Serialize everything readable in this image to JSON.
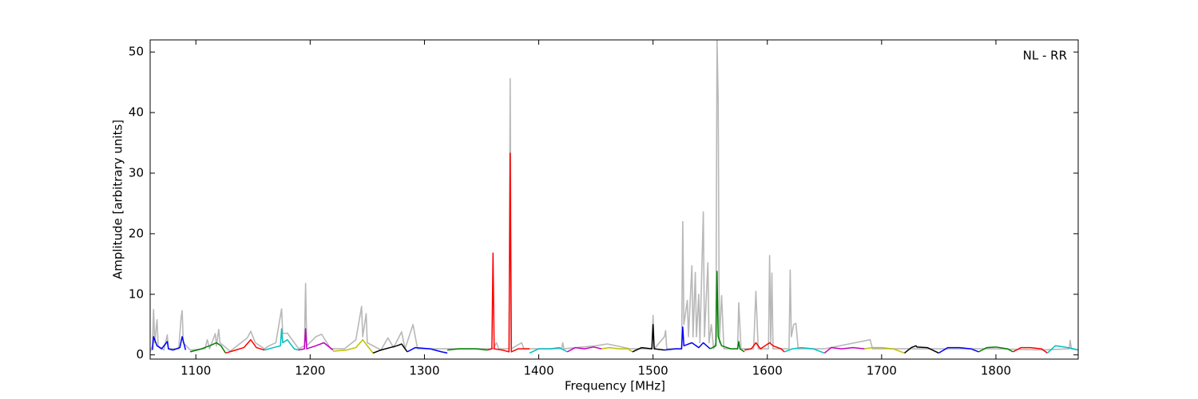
{
  "chart_data": {
    "type": "line",
    "x_label": "Frequency [MHz]",
    "y_label": "Amplitude [arbitrary units]",
    "annotation": "NL - RR",
    "xlim": [
      1060,
      1872
    ],
    "ylim": [
      -0.7,
      52
    ],
    "xticks": [
      1100,
      1200,
      1300,
      1400,
      1500,
      1600,
      1700,
      1800
    ],
    "yticks": [
      0,
      10,
      20,
      30,
      40,
      50
    ],
    "grid": false,
    "series": [
      {
        "color": "#b8b8b8",
        "x": [
          1060,
          1062,
          1063,
          1064,
          1066,
          1067,
          1072,
          1075,
          1076,
          1085,
          1087,
          1088,
          1089,
          1095,
          1108,
          1110,
          1112,
          1117,
          1118,
          1120,
          1121,
          1130,
          1145,
          1148,
          1152,
          1160,
          1164,
          1170,
          1175,
          1176,
          1180,
          1190,
          1195,
          1196,
          1197,
          1205,
          1210,
          1218,
          1230,
          1240,
          1245,
          1246,
          1249,
          1250,
          1262,
          1268,
          1273,
          1280,
          1283,
          1290,
          1294,
          1305,
          1340,
          1360,
          1363,
          1365,
          1374,
          1375,
          1376,
          1385,
          1387,
          1420,
          1421,
          1422,
          1450,
          1460,
          1480,
          1499,
          1500,
          1501,
          1510,
          1511,
          1512,
          1525,
          1526,
          1527,
          1530,
          1531,
          1534,
          1535,
          1537,
          1538,
          1540,
          1541,
          1544,
          1545,
          1548,
          1549,
          1551,
          1553,
          1555,
          1556,
          1557,
          1558,
          1560,
          1562,
          1574,
          1575,
          1577,
          1588,
          1590,
          1592,
          1601,
          1602,
          1603,
          1604,
          1605,
          1619,
          1620,
          1621,
          1623,
          1625,
          1627,
          1650,
          1690,
          1692,
          1750,
          1800,
          1840,
          1864,
          1865,
          1866,
          1872
        ],
        "values": [
          0.5,
          1.5,
          7.5,
          2,
          5.8,
          1.5,
          0.8,
          3.3,
          1,
          1,
          6,
          7.3,
          2,
          0.8,
          1,
          2.5,
          1,
          3.5,
          1.5,
          4.2,
          2,
          0.6,
          2.8,
          3.9,
          2,
          1,
          1.5,
          2,
          7.6,
          3.5,
          3.6,
          1,
          1.5,
          11.8,
          1.5,
          3,
          3.4,
          1,
          1,
          2.5,
          8,
          3,
          6.8,
          2,
          0.8,
          2.8,
          1.2,
          3.8,
          1,
          5,
          1,
          1,
          1,
          1,
          2,
          1,
          1,
          45.6,
          1,
          2,
          1,
          1,
          2,
          1,
          1.5,
          1.8,
          1,
          1,
          6.5,
          1,
          3,
          4,
          1,
          1,
          22,
          5,
          9,
          3,
          14.7,
          3,
          13.6,
          3,
          10,
          2,
          23.6,
          3,
          15.2,
          2,
          5,
          1,
          2,
          52,
          42,
          2,
          9.8,
          1,
          1,
          8.6,
          1,
          1,
          10.5,
          1,
          1,
          16.4,
          2,
          13.5,
          1,
          1,
          14,
          3,
          5,
          5.2,
          1,
          1,
          2.5,
          1,
          1,
          1,
          0.8,
          1,
          2.4,
          1,
          0.8
        ]
      },
      {
        "color": "#0000ff",
        "x": [
          1062,
          1063,
          1066,
          1070,
          1075,
          1076,
          1080,
          1086,
          1088,
          1091
        ],
        "values": [
          0.8,
          3,
          1.5,
          1,
          2.2,
          1,
          0.8,
          1.2,
          3,
          0.8
        ]
      },
      {
        "color": "#008000",
        "x": [
          1095,
          1105,
          1112,
          1118,
          1122,
          1126
        ],
        "values": [
          0.5,
          1,
          1.5,
          2,
          1.5,
          0.3
        ]
      },
      {
        "color": "#ff0000",
        "x": [
          1126,
          1135,
          1142,
          1148,
          1153,
          1160
        ],
        "values": [
          0.3,
          0.8,
          1.2,
          2.5,
          1.2,
          0.8
        ]
      },
      {
        "color": "#00bfbf",
        "x": [
          1160,
          1168,
          1174,
          1175,
          1176,
          1180,
          1186,
          1190
        ],
        "values": [
          0.8,
          1.2,
          1.5,
          4.3,
          2,
          2.5,
          1,
          0.8
        ]
      },
      {
        "color": "#bf00bf",
        "x": [
          1190,
          1195,
          1196,
          1197,
          1205,
          1212,
          1220
        ],
        "values": [
          0.8,
          1,
          4.3,
          1,
          1.5,
          2,
          0.8
        ]
      },
      {
        "color": "#bfbf00",
        "x": [
          1220,
          1232,
          1240,
          1246,
          1250,
          1255
        ],
        "values": [
          0.6,
          0.8,
          1.2,
          2.5,
          1.5,
          0.3
        ]
      },
      {
        "color": "#000000",
        "x": [
          1255,
          1262,
          1270,
          1276,
          1280,
          1285
        ],
        "values": [
          0.3,
          0.8,
          1.2,
          1.5,
          1.8,
          0.5
        ]
      },
      {
        "color": "#0000ff",
        "x": [
          1285,
          1292,
          1305,
          1315,
          1320
        ],
        "values": [
          0.5,
          1.2,
          1,
          0.5,
          0.3
        ]
      },
      {
        "color": "#008000",
        "x": [
          1320,
          1330,
          1345,
          1355
        ],
        "values": [
          0.8,
          1,
          1,
          0.8
        ]
      },
      {
        "color": "#ff0000",
        "x": [
          1355,
          1359,
          1360,
          1361,
          1368,
          1374,
          1375,
          1376,
          1382,
          1392
        ],
        "values": [
          0.8,
          1,
          16.8,
          1,
          0.8,
          0.5,
          33.3,
          0.5,
          1,
          1
        ]
      },
      {
        "color": "#00bfbf",
        "x": [
          1392,
          1400,
          1410,
          1418,
          1425
        ],
        "values": [
          0.3,
          1,
          1,
          1.2,
          0.5
        ]
      },
      {
        "color": "#bf00bf",
        "x": [
          1425,
          1432,
          1440,
          1448,
          1455
        ],
        "values": [
          0.5,
          1.2,
          1,
          1.3,
          1
        ]
      },
      {
        "color": "#bfbf00",
        "x": [
          1455,
          1462,
          1470,
          1478,
          1482
        ],
        "values": [
          1,
          1.2,
          1,
          1,
          0.5
        ]
      },
      {
        "color": "#000000",
        "x": [
          1482,
          1490,
          1499,
          1500,
          1501,
          1510
        ],
        "values": [
          0.5,
          1.2,
          1,
          5,
          1,
          0.8
        ]
      },
      {
        "color": "#0000ff",
        "x": [
          1510,
          1520,
          1525,
          1526,
          1527,
          1534,
          1540,
          1544,
          1550
        ],
        "values": [
          0.8,
          1,
          1,
          4.6,
          1.5,
          2,
          1.2,
          2,
          1
        ]
      },
      {
        "color": "#008000",
        "x": [
          1550,
          1555,
          1556,
          1557,
          1560,
          1568,
          1574,
          1575,
          1576,
          1580
        ],
        "values": [
          1,
          1.5,
          13.8,
          3,
          1.5,
          1,
          1,
          2.2,
          1,
          0.5
        ]
      },
      {
        "color": "#ff0000",
        "x": [
          1580,
          1586,
          1590,
          1594,
          1602,
          1605,
          1612,
          1615
        ],
        "values": [
          0.8,
          1,
          2,
          1,
          2,
          1.5,
          1,
          0.5
        ]
      },
      {
        "color": "#00bfbf",
        "x": [
          1615,
          1622,
          1630,
          1640,
          1650
        ],
        "values": [
          0.5,
          1,
          1.2,
          1,
          0.3
        ]
      },
      {
        "color": "#bf00bf",
        "x": [
          1650,
          1656,
          1665,
          1675,
          1685
        ],
        "values": [
          0.3,
          1.2,
          1,
          1.2,
          1
        ]
      },
      {
        "color": "#bfbf00",
        "x": [
          1685,
          1692,
          1700,
          1710,
          1720
        ],
        "values": [
          1,
          1.2,
          1.2,
          1,
          0.3
        ]
      },
      {
        "color": "#000000",
        "x": [
          1720,
          1726,
          1730,
          1731,
          1740,
          1750
        ],
        "values": [
          0.3,
          1.2,
          1.5,
          1.3,
          1.2,
          0.3
        ]
      },
      {
        "color": "#0000ff",
        "x": [
          1750,
          1758,
          1768,
          1778,
          1785
        ],
        "values": [
          0.3,
          1.2,
          1.2,
          1,
          0.5
        ]
      },
      {
        "color": "#008000",
        "x": [
          1785,
          1792,
          1800,
          1810,
          1815
        ],
        "values": [
          0.5,
          1.2,
          1.3,
          1,
          0.5
        ]
      },
      {
        "color": "#ff0000",
        "x": [
          1815,
          1822,
          1830,
          1840,
          1845
        ],
        "values": [
          0.5,
          1.2,
          1.2,
          1,
          0.3
        ]
      },
      {
        "color": "#00bfbf",
        "x": [
          1845,
          1852,
          1860,
          1868,
          1872
        ],
        "values": [
          0.3,
          1.5,
          1.3,
          1,
          0.8
        ]
      }
    ]
  }
}
